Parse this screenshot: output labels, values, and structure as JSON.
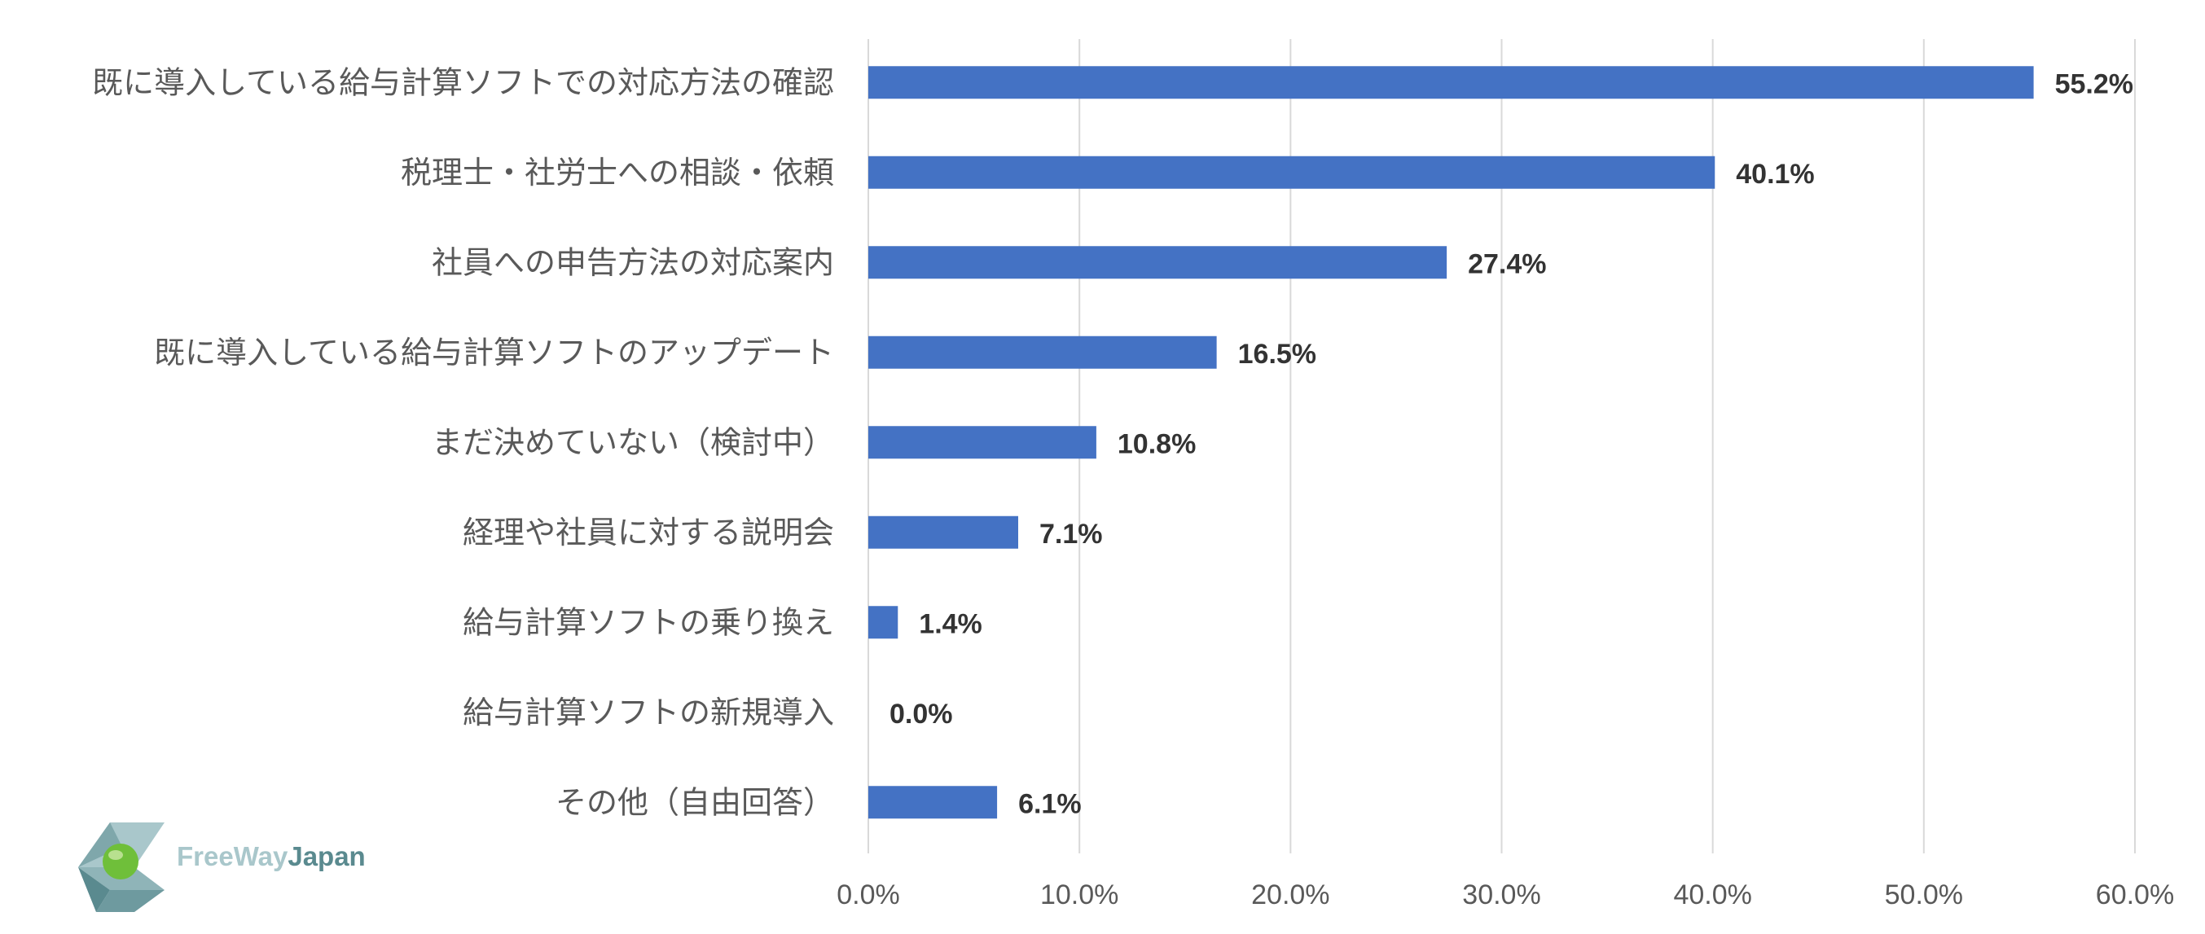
{
  "chart_data": {
    "type": "bar",
    "orientation": "horizontal",
    "title": "",
    "xlabel": "",
    "ylabel": "",
    "categories": [
      "既に導入している給与計算ソフトでの対応方法の確認",
      "税理士・社労士への相談・依頼",
      "社員への申告方法の対応案内",
      "既に導入している給与計算ソフトのアップデート",
      "まだ決めていない（検討中）",
      "経理や社員に対する説明会",
      "給与計算ソフトの乗り換え",
      "給与計算ソフトの新規導入",
      "その他（自由回答）"
    ],
    "values": [
      55.2,
      40.1,
      27.4,
      16.5,
      10.8,
      7.1,
      1.4,
      0.0,
      6.1
    ],
    "value_labels": [
      "55.2%",
      "40.1%",
      "27.4%",
      "16.5%",
      "10.8%",
      "7.1%",
      "1.4%",
      "0.0%",
      "6.1%"
    ],
    "xlim": [
      0,
      60
    ],
    "x_ticks": [
      0,
      10,
      20,
      30,
      40,
      50,
      60
    ],
    "x_tick_labels": [
      "0.0%",
      "10.0%",
      "20.0%",
      "30.0%",
      "40.0%",
      "50.0%",
      "60.0%"
    ],
    "grid": true,
    "legend": "none"
  },
  "colors": {
    "bar": "#4472C4",
    "gridline": "#D9D9D9",
    "logo_green": "#6FBF3A",
    "logo_teal": "#5A8A8F",
    "logo_light": "#A9C7CB"
  },
  "logo": {
    "part1": "FreeWay",
    "part2": "Japan"
  }
}
